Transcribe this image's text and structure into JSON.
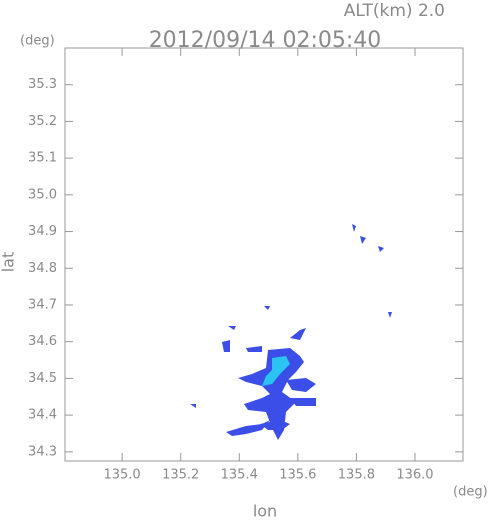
{
  "chart_data": {
    "type": "map",
    "title": "2012/09/14 02:05:40",
    "altitude_label": "ALT(km) 2.0",
    "x_label": "lon",
    "y_label": "lat",
    "x_unit": "(deg)",
    "y_unit": "(deg)",
    "xlim": [
      134.805,
      136.164
    ],
    "ylim": [
      34.275,
      35.4
    ],
    "xticks": [
      {
        "value": 135,
        "label": "135.0"
      },
      135.2,
      135.4,
      135.6,
      135.8,
      {
        "value": 136,
        "label": "136.0"
      }
    ],
    "yticks": [
      34.3,
      34.4,
      34.5,
      34.6,
      34.7,
      34.8,
      34.9,
      {
        "value": 35,
        "label": "35.0"
      },
      35.1,
      35.2,
      35.3
    ]
  }
}
